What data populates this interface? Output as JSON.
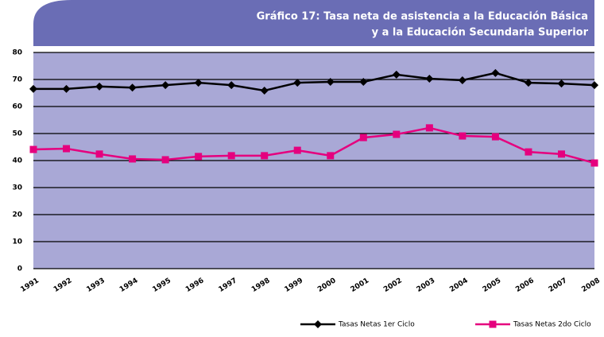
{
  "chart_data": {
    "type": "line",
    "title": [
      "Gráfico 17: Tasa neta de asistencia a la Educación Básica",
      "y a la Educación Secundaria Superior"
    ],
    "categories": [
      "1991",
      "1992",
      "1993",
      "1994",
      "1995",
      "1996",
      "1997",
      "1998",
      "1999",
      "2000",
      "2001",
      "2002",
      "2003",
      "2004",
      "2005",
      "2006",
      "2007",
      "2008"
    ],
    "series": [
      {
        "name": "Tasas Netas 1er Ciclo",
        "color": "#000000",
        "marker": "diamond",
        "values": [
          66.5,
          66.5,
          67.4,
          67.0,
          67.9,
          68.8,
          67.9,
          65.9,
          68.8,
          69.1,
          69.1,
          71.8,
          70.3,
          69.7,
          72.4,
          68.8,
          68.5,
          67.9
        ]
      },
      {
        "name": "Tasas Netas 2do Ciclo",
        "color": "#e5007e",
        "marker": "square",
        "values": [
          44.1,
          44.4,
          42.4,
          40.6,
          40.3,
          41.5,
          41.8,
          41.8,
          43.8,
          41.8,
          48.5,
          49.7,
          52.1,
          49.1,
          48.8,
          43.2,
          42.4,
          39.1
        ]
      }
    ],
    "ylim": [
      0,
      80
    ],
    "yticks": [
      0,
      10,
      20,
      30,
      40,
      50,
      60,
      70,
      80
    ],
    "grid": true,
    "legend": "bottom-right",
    "plot_background": "#a9a8d6",
    "title_background": "#6a6db5"
  }
}
